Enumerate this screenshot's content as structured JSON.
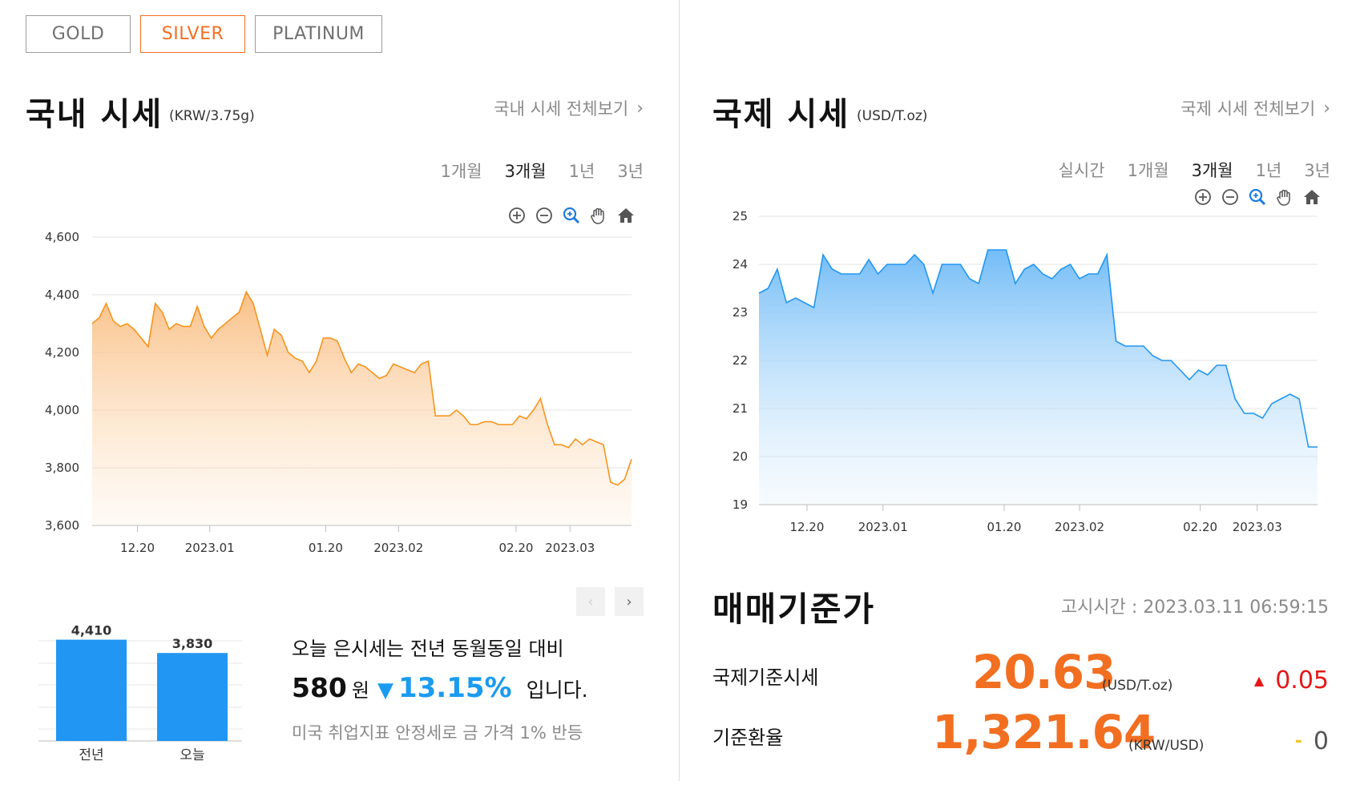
{
  "tabs": [
    {
      "label": "GOLD",
      "active": false
    },
    {
      "label": "SILVER",
      "active": true
    },
    {
      "label": "PLATINUM",
      "active": false
    }
  ],
  "domestic": {
    "title": "국내 시세",
    "unit": "(KRW/3.75g)",
    "view_all": "국내 시세 전체보기",
    "periods": [
      "1개월",
      "3개월",
      "1년",
      "3년"
    ],
    "active_period": "3개월"
  },
  "international": {
    "title": "국제 시세",
    "unit": "(USD/T.oz)",
    "view_all": "국제 시세 전체보기",
    "periods": [
      "실시간",
      "1개월",
      "3개월",
      "1년",
      "3년"
    ],
    "active_period": "3개월"
  },
  "tools": [
    "zoom-in-icon",
    "zoom-out-icon",
    "magnifier-icon",
    "pan-hand-icon",
    "home-icon"
  ],
  "colors": {
    "accent": "#f26f21",
    "blue": "#1a9bf0",
    "bar_blue": "#2196f3",
    "down_blue": "#1a9bf0",
    "up_red": "#e61717"
  },
  "chart_data": [
    {
      "type": "area",
      "title": "국내 시세",
      "unit": "KRW/3.75g",
      "color": "#f7941d",
      "ylim": [
        3600,
        4600
      ],
      "yticks": [
        3600,
        3800,
        4000,
        4200,
        4400,
        4600
      ],
      "ytick_labels": [
        "3,600",
        "3,800",
        "4,000",
        "4,200",
        "4,400",
        "4,600"
      ],
      "x_labels": [
        {
          "label": "12.20",
          "pos": 0.084
        },
        {
          "label": "2023.01",
          "pos": 0.218
        },
        {
          "label": "01.20",
          "pos": 0.433
        },
        {
          "label": "2023.02",
          "pos": 0.568
        },
        {
          "label": "02.20",
          "pos": 0.786
        },
        {
          "label": "2023.03",
          "pos": 0.886
        }
      ],
      "values": [
        4300,
        4320,
        4370,
        4310,
        4290,
        4300,
        4280,
        4250,
        4220,
        4370,
        4340,
        4280,
        4300,
        4290,
        4290,
        4360,
        4290,
        4250,
        4280,
        4300,
        4320,
        4340,
        4410,
        4370,
        4280,
        4190,
        4280,
        4260,
        4200,
        4180,
        4170,
        4130,
        4170,
        4250,
        4250,
        4240,
        4180,
        4130,
        4160,
        4150,
        4130,
        4110,
        4120,
        4160,
        4150,
        4140,
        4130,
        4160,
        4170,
        3980,
        3980,
        3980,
        4000,
        3980,
        3950,
        3950,
        3960,
        3960,
        3950,
        3950,
        3950,
        3980,
        3970,
        4000,
        4040,
        3950,
        3880,
        3880,
        3870,
        3900,
        3880,
        3900,
        3890,
        3880,
        3750,
        3740,
        3760,
        3830
      ],
      "grid": true
    },
    {
      "type": "area",
      "title": "국제 시세",
      "unit": "USD/T.oz",
      "color": "#2196f3",
      "ylim": [
        19,
        25
      ],
      "yticks": [
        19,
        20,
        21,
        22,
        23,
        24,
        25
      ],
      "ytick_labels": [
        "19",
        "20",
        "21",
        "22",
        "23",
        "24",
        "25"
      ],
      "x_labels": [
        {
          "label": "12.20",
          "pos": 0.086
        },
        {
          "label": "2023.01",
          "pos": 0.222
        },
        {
          "label": "01.20",
          "pos": 0.439
        },
        {
          "label": "2023.02",
          "pos": 0.574
        },
        {
          "label": "02.20",
          "pos": 0.79
        },
        {
          "label": "2023.03",
          "pos": 0.892
        }
      ],
      "values": [
        23.4,
        23.5,
        23.9,
        23.2,
        23.3,
        23.2,
        23.1,
        24.2,
        23.9,
        23.8,
        23.8,
        23.8,
        24.1,
        23.8,
        24.0,
        24.0,
        24.0,
        24.2,
        24.0,
        23.4,
        24.0,
        24.0,
        24.0,
        23.7,
        23.6,
        24.3,
        24.3,
        24.3,
        23.6,
        23.9,
        24.0,
        23.8,
        23.7,
        23.9,
        24.0,
        23.7,
        23.8,
        23.8,
        24.2,
        22.4,
        22.3,
        22.3,
        22.3,
        22.1,
        22.0,
        22.0,
        21.8,
        21.6,
        21.8,
        21.7,
        21.9,
        21.9,
        21.2,
        20.9,
        20.9,
        20.8,
        21.1,
        21.2,
        21.3,
        21.2,
        20.2,
        20.2
      ]
    },
    {
      "type": "bar",
      "categories": [
        "전년",
        "오늘"
      ],
      "values": [
        4410,
        3830
      ],
      "value_labels": [
        "4,410",
        "3,830"
      ],
      "color": "#2196f3"
    }
  ],
  "summary": {
    "line1": "오늘 은시세는 전년 동월동일 대비",
    "amount": "580",
    "won": "원",
    "arrow": "▼",
    "percent": "13.15%",
    "tail": "입니다.",
    "news": "미국 취업지표 안정세로 금 가격 1% 반등"
  },
  "pager": {
    "prev": "‹",
    "next": "›"
  },
  "standard": {
    "title": "매매기준가",
    "notice_label": "고시시간 :",
    "notice_time": "2023.03.11 06:59:15",
    "rows": [
      {
        "label": "국제기준시세",
        "value": "20.63",
        "unit": "(USD/T.oz)",
        "change_icon": "▲",
        "change": "0.05"
      },
      {
        "label": "기준환율",
        "value": "1,321.64",
        "unit": "(KRW/USD)",
        "change_icon": "-",
        "change": "0"
      }
    ]
  }
}
